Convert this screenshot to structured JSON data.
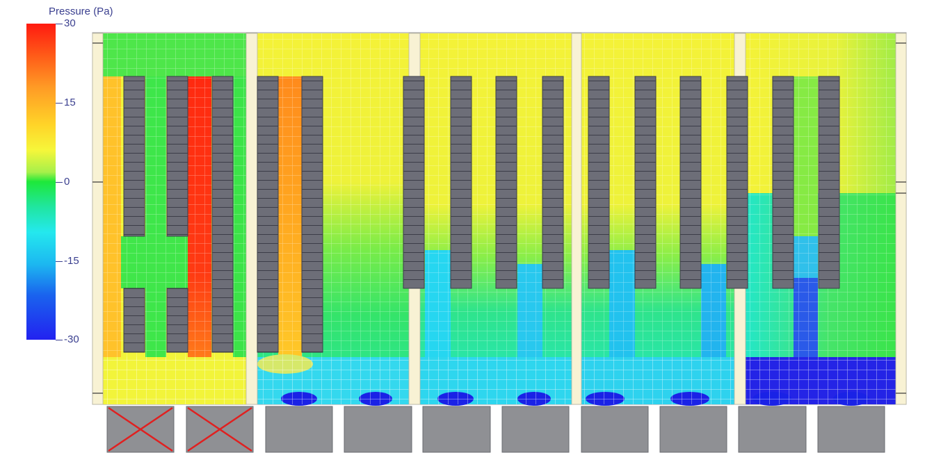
{
  "legend": {
    "title": "Pressure (Pa)",
    "ticks": [
      "30",
      "15",
      "0",
      "-15",
      "-30"
    ],
    "range": [
      -30,
      30
    ],
    "colors": {
      "high": "#ff1a10",
      "mid_high": "#f6f63a",
      "zero": "#1ee83a",
      "mid_low": "#24e8ee",
      "low": "#2222f0"
    }
  },
  "layout_labels": {
    "disabled_unit_marker": "red-x-icon",
    "unit_count": 10,
    "disabled_units": [
      1,
      2
    ]
  }
}
